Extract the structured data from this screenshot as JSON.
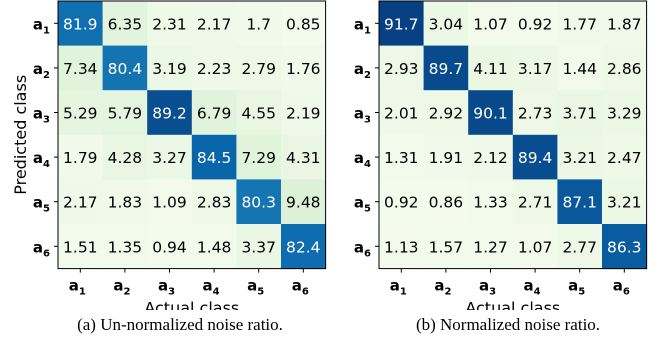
{
  "chart_data": [
    {
      "type": "heatmap",
      "xlabel": "Actual class",
      "ylabel": "Predicted class",
      "x_categories": [
        "a1",
        "a2",
        "a3",
        "a4",
        "a5",
        "a6"
      ],
      "y_categories": [
        "a1",
        "a2",
        "a3",
        "a4",
        "a5",
        "a6"
      ],
      "values": [
        [
          81.9,
          6.35,
          2.31,
          2.17,
          1.7,
          0.85
        ],
        [
          7.34,
          80.4,
          3.19,
          2.23,
          2.79,
          1.76
        ],
        [
          5.29,
          5.79,
          89.2,
          6.79,
          4.55,
          2.19
        ],
        [
          1.79,
          4.28,
          3.27,
          84.5,
          7.29,
          4.31
        ],
        [
          2.17,
          1.83,
          1.09,
          2.83,
          80.3,
          9.48
        ],
        [
          1.51,
          1.35,
          0.94,
          1.48,
          3.37,
          82.4
        ]
      ],
      "caption": "(a) Un-normalized noise ratio.",
      "colormap": "GnBu",
      "value_range": [
        0,
        92
      ]
    },
    {
      "type": "heatmap",
      "xlabel": "Actual class",
      "ylabel": "",
      "x_categories": [
        "a1",
        "a2",
        "a3",
        "a4",
        "a5",
        "a6"
      ],
      "y_categories": [
        "a1",
        "a2",
        "a3",
        "a4",
        "a5",
        "a6"
      ],
      "values": [
        [
          91.7,
          3.04,
          1.07,
          0.92,
          1.77,
          1.87
        ],
        [
          2.93,
          89.7,
          4.11,
          3.17,
          1.44,
          2.86
        ],
        [
          2.01,
          2.92,
          90.1,
          2.73,
          3.71,
          3.29
        ],
        [
          1.31,
          1.91,
          2.12,
          89.4,
          3.21,
          2.47
        ],
        [
          0.92,
          0.86,
          1.33,
          2.71,
          87.1,
          3.21
        ],
        [
          1.13,
          1.57,
          1.27,
          1.07,
          2.77,
          86.3
        ]
      ],
      "caption": "(b) Normalized noise ratio.",
      "colormap": "GnBu",
      "value_range": [
        0,
        92
      ]
    }
  ]
}
